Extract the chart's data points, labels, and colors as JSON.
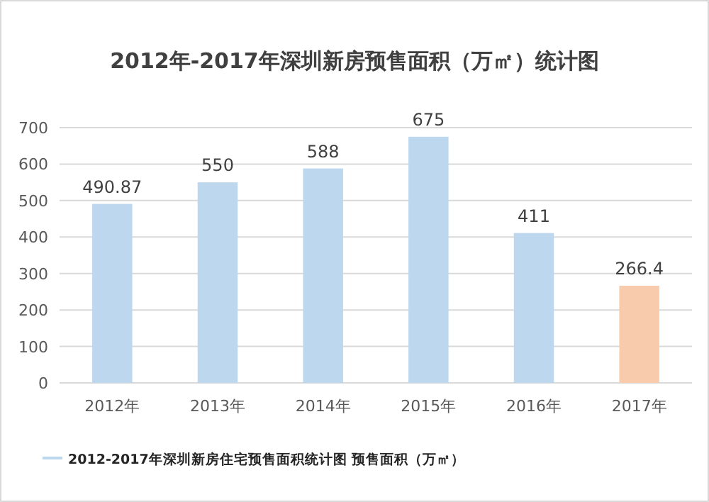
{
  "chart_data": {
    "type": "bar",
    "title": "2012年-2017年深圳新房预售面积（万㎡）统计图",
    "categories": [
      "2012年",
      "2013年",
      "2014年",
      "2015年",
      "2016年",
      "2017年"
    ],
    "series": [
      {
        "name": "2012-2017年深圳新房住宅预售面积统计图 预售面积（万㎡）",
        "color": "#bdd7ee",
        "colors": [
          "#bdd7ee",
          "#bdd7ee",
          "#bdd7ee",
          "#bdd7ee",
          "#bdd7ee",
          "#f8cbad"
        ],
        "values": [
          490.87,
          550,
          588,
          675,
          411,
          266.4
        ]
      }
    ],
    "ylim": [
      0,
      700
    ],
    "yticks": [
      0,
      100,
      200,
      300,
      400,
      500,
      600,
      700
    ],
    "grid": "y",
    "legend": "bottom",
    "data_labels": true
  }
}
